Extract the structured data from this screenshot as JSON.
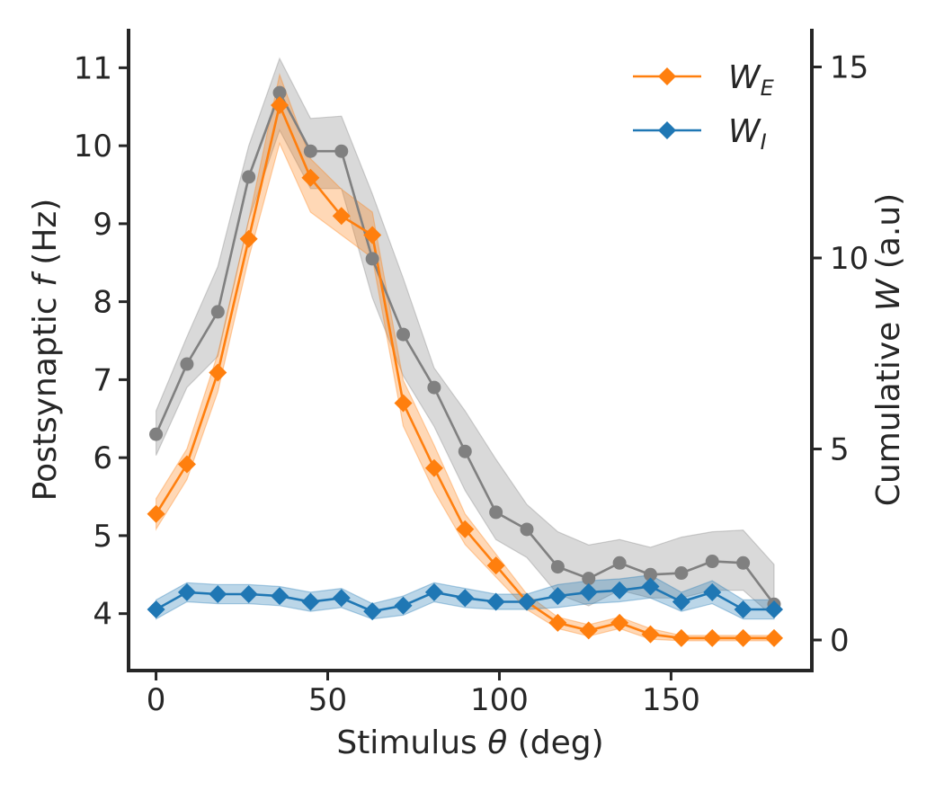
{
  "chart_data": {
    "type": "line",
    "x": [
      0,
      9,
      18,
      27,
      36,
      45,
      54,
      63,
      72,
      81,
      90,
      99,
      108,
      117,
      126,
      135,
      144,
      153,
      162,
      171,
      180
    ],
    "xlabel": {
      "prefix": "Stimulus ",
      "var": "θ",
      "suffix": " (deg)"
    },
    "ylabel_left": {
      "prefix": "Postsynaptic ",
      "var": "f",
      "suffix": " (Hz)"
    },
    "ylabel_right": {
      "prefix": "Cumulative ",
      "var": "W",
      "suffix": " (a.u)"
    },
    "xlim": [
      -8,
      191
    ],
    "ylim_left": [
      3.27,
      11.5
    ],
    "ylim_right": [
      -0.8,
      16
    ],
    "xticks": [
      0,
      50,
      100,
      150
    ],
    "yticks_left": [
      4,
      5,
      6,
      7,
      8,
      9,
      10,
      11
    ],
    "yticks_right": [
      0,
      5,
      10,
      15
    ],
    "legend_position": "top-right",
    "grid": false,
    "series": [
      {
        "name": "",
        "axis": "left",
        "color": "#808080",
        "marker": "circle",
        "values": [
          6.3,
          7.2,
          7.87,
          9.6,
          10.68,
          9.93,
          9.93,
          8.55,
          7.58,
          6.9,
          6.08,
          5.3,
          5.08,
          4.6,
          4.45,
          4.65,
          4.5,
          4.52,
          4.67,
          4.65,
          4.12
        ],
        "lower": [
          6.03,
          6.9,
          7.3,
          9.05,
          10.2,
          9.45,
          9.45,
          8.05,
          7.05,
          6.4,
          5.58,
          4.95,
          4.72,
          4.25,
          4.1,
          4.3,
          4.2,
          4.2,
          4.3,
          4.3,
          3.95
        ],
        "upper": [
          6.6,
          7.55,
          8.45,
          10.0,
          11.12,
          10.35,
          10.38,
          9.38,
          8.3,
          7.15,
          6.6,
          5.98,
          5.4,
          5.05,
          4.88,
          4.95,
          4.85,
          4.98,
          5.05,
          5.07,
          4.63
        ]
      },
      {
        "name": "E",
        "axis": "right",
        "color": "#ff7f0e",
        "marker": "diamond",
        "values": [
          3.3,
          4.6,
          7.0,
          10.5,
          14.0,
          12.1,
          11.1,
          10.6,
          6.2,
          4.5,
          2.9,
          1.95,
          1.0,
          0.45,
          0.25,
          0.45,
          0.15,
          0.05,
          0.05,
          0.05,
          0.05
        ],
        "lower": [
          2.9,
          4.2,
          6.5,
          10.0,
          13.0,
          11.2,
          10.6,
          10.0,
          5.6,
          3.9,
          2.5,
          1.65,
          0.8,
          0.3,
          0.1,
          0.3,
          0.02,
          -0.02,
          -0.02,
          -0.02,
          -0.02
        ],
        "upper": [
          3.7,
          5.0,
          7.5,
          11.0,
          14.8,
          12.6,
          11.8,
          11.2,
          6.8,
          5.1,
          3.3,
          2.25,
          1.2,
          0.6,
          0.4,
          0.6,
          0.3,
          0.12,
          0.12,
          0.12,
          0.12
        ]
      },
      {
        "name": "I",
        "axis": "right",
        "color": "#1f77b4",
        "marker": "diamond",
        "values": [
          0.8,
          1.25,
          1.2,
          1.2,
          1.15,
          1.0,
          1.1,
          0.75,
          0.9,
          1.25,
          1.1,
          1.0,
          1.0,
          1.15,
          1.25,
          1.3,
          1.4,
          1.0,
          1.25,
          0.8,
          0.8
        ],
        "lower": [
          0.55,
          1.0,
          0.95,
          0.95,
          0.9,
          0.75,
          0.85,
          0.55,
          0.65,
          1.0,
          0.85,
          0.8,
          0.8,
          0.85,
          0.95,
          1.0,
          1.1,
          0.75,
          0.95,
          0.55,
          0.55
        ],
        "upper": [
          1.05,
          1.5,
          1.45,
          1.45,
          1.4,
          1.25,
          1.35,
          0.95,
          1.15,
          1.5,
          1.35,
          1.2,
          1.2,
          1.45,
          1.55,
          1.6,
          1.7,
          1.25,
          1.55,
          1.05,
          1.05
        ]
      }
    ],
    "legend": [
      {
        "symbol": "W",
        "sub": "E",
        "series_index": 1
      },
      {
        "symbol": "W",
        "sub": "I",
        "series_index": 2
      }
    ]
  }
}
